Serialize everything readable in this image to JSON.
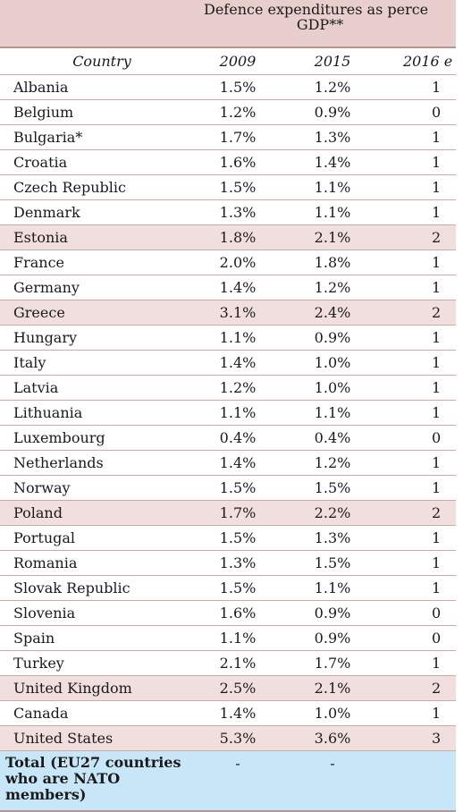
{
  "table": {
    "title_line1": "Defence expenditures as perce",
    "title_line2": "GDP**",
    "headers": {
      "country": "Country",
      "y2009": "2009",
      "y2015": "2015",
      "y2016": "2016 e"
    },
    "rows": [
      {
        "country": "Albania",
        "y2009": "1.5%",
        "y2015": "1.2%",
        "y2016": "1",
        "highlight": false
      },
      {
        "country": "Belgium",
        "y2009": "1.2%",
        "y2015": "0.9%",
        "y2016": "0",
        "highlight": false
      },
      {
        "country": "Bulgaria*",
        "y2009": "1.7%",
        "y2015": "1.3%",
        "y2016": "1",
        "highlight": false
      },
      {
        "country": "Croatia",
        "y2009": "1.6%",
        "y2015": "1.4%",
        "y2016": "1",
        "highlight": false
      },
      {
        "country": "Czech Republic",
        "y2009": "1.5%",
        "y2015": "1.1%",
        "y2016": "1",
        "highlight": false
      },
      {
        "country": "Denmark",
        "y2009": "1.3%",
        "y2015": "1.1%",
        "y2016": "1",
        "highlight": false
      },
      {
        "country": "Estonia",
        "y2009": "1.8%",
        "y2015": "2.1%",
        "y2016": "2",
        "highlight": true
      },
      {
        "country": "France",
        "y2009": "2.0%",
        "y2015": "1.8%",
        "y2016": "1",
        "highlight": false
      },
      {
        "country": "Germany",
        "y2009": "1.4%",
        "y2015": "1.2%",
        "y2016": "1",
        "highlight": false
      },
      {
        "country": "Greece",
        "y2009": "3.1%",
        "y2015": "2.4%",
        "y2016": "2",
        "highlight": true
      },
      {
        "country": "Hungary",
        "y2009": "1.1%",
        "y2015": "0.9%",
        "y2016": "1",
        "highlight": false
      },
      {
        "country": "Italy",
        "y2009": "1.4%",
        "y2015": "1.0%",
        "y2016": "1",
        "highlight": false
      },
      {
        "country": "Latvia",
        "y2009": "1.2%",
        "y2015": "1.0%",
        "y2016": "1",
        "highlight": false
      },
      {
        "country": "Lithuania",
        "y2009": "1.1%",
        "y2015": "1.1%",
        "y2016": "1",
        "highlight": false
      },
      {
        "country": "Luxembourg",
        "y2009": "0.4%",
        "y2015": "0.4%",
        "y2016": "0",
        "highlight": false
      },
      {
        "country": "Netherlands",
        "y2009": "1.4%",
        "y2015": "1.2%",
        "y2016": "1",
        "highlight": false
      },
      {
        "country": "Norway",
        "y2009": "1.5%",
        "y2015": "1.5%",
        "y2016": "1",
        "highlight": false
      },
      {
        "country": "Poland",
        "y2009": "1.7%",
        "y2015": "2.2%",
        "y2016": "2",
        "highlight": true
      },
      {
        "country": "Portugal",
        "y2009": "1.5%",
        "y2015": "1.3%",
        "y2016": "1",
        "highlight": false
      },
      {
        "country": "Romania",
        "y2009": "1.3%",
        "y2015": "1.5%",
        "y2016": "1",
        "highlight": false
      },
      {
        "country": "Slovak Republic",
        "y2009": "1.5%",
        "y2015": "1.1%",
        "y2016": "1",
        "highlight": false
      },
      {
        "country": "Slovenia",
        "y2009": "1.6%",
        "y2015": "0.9%",
        "y2016": "0",
        "highlight": false
      },
      {
        "country": "Spain",
        "y2009": "1.1%",
        "y2015": "0.9%",
        "y2016": "0",
        "highlight": false
      },
      {
        "country": "Turkey",
        "y2009": "2.1%",
        "y2015": "1.7%",
        "y2016": "1",
        "highlight": false
      },
      {
        "country": "United Kingdom",
        "y2009": "2.5%",
        "y2015": "2.1%",
        "y2016": "2",
        "highlight": true
      },
      {
        "country": "Canada",
        "y2009": "1.4%",
        "y2015": "1.0%",
        "y2016": "1",
        "highlight": false
      },
      {
        "country": "United States",
        "y2009": "5.3%",
        "y2015": "3.6%",
        "y2016": "3",
        "highlight": true
      }
    ],
    "total": {
      "label": "Total (EU27 countries who are NATO members)",
      "y2009": "-",
      "y2015": "-",
      "y2016": ""
    }
  },
  "colors": {
    "highlight_row": "#f1dede",
    "title_background": "#e8cfcd",
    "total_background": "#c7e6f7",
    "row_border": "#cfa9a6"
  }
}
